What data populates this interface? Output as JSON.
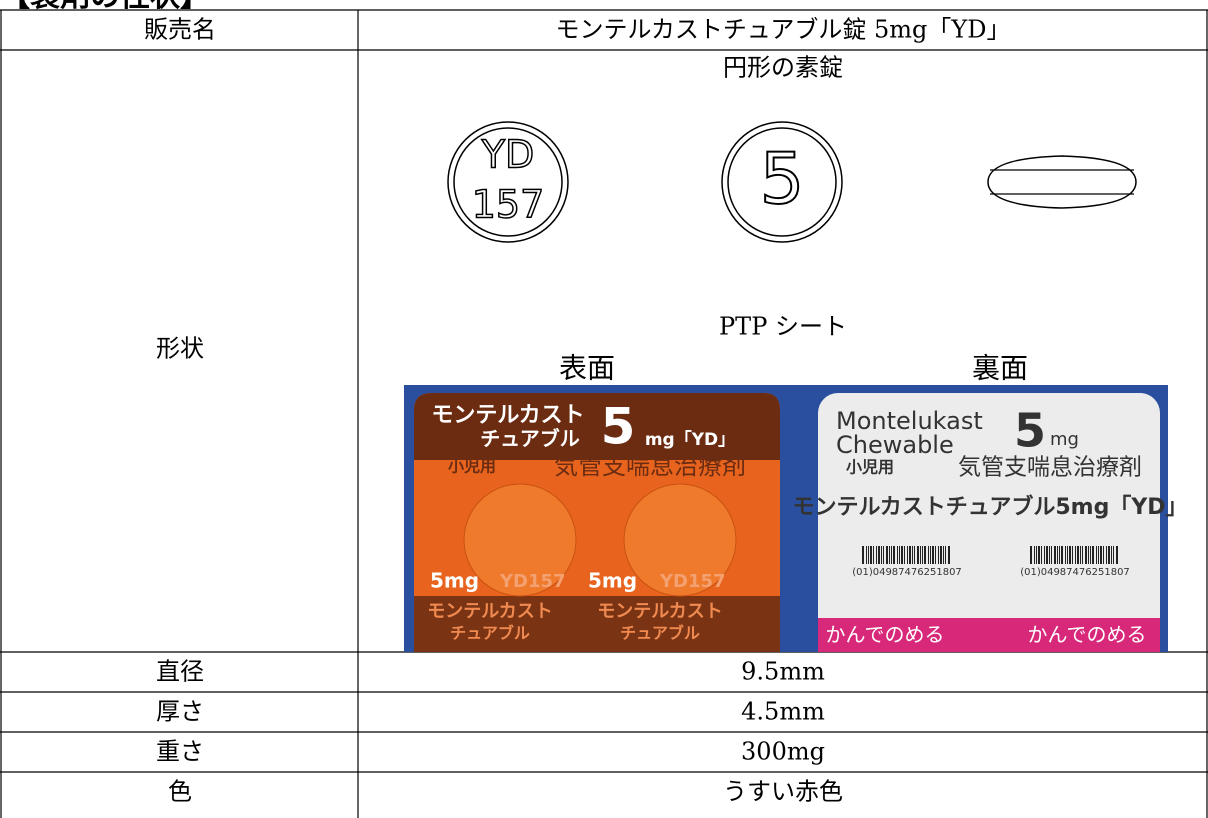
{
  "header": {
    "title": "【製剤の性状】"
  },
  "table": {
    "rows": [
      [
        "販売名",
        "モンテルカストチュアブル錠 5mg「YD」"
      ],
      [
        "形状",
        ""
      ],
      [
        "直径",
        "9.5mm"
      ],
      [
        "厚さ",
        "4.5mm"
      ],
      [
        "重さ",
        "300mg"
      ],
      [
        "色",
        "うすい赤色"
      ]
    ]
  },
  "shape": {
    "caption": "円形の素錠",
    "tablet_front": [
      "YD",
      "157"
    ],
    "tablet_back": "5",
    "ptp_caption": "PTP シート",
    "front_label": "表面",
    "back_label": "裏面",
    "ptp_front": {
      "name1": "モンテルカスト",
      "name2": "チュアブル",
      "strength": "5",
      "unit": "mg「YD」",
      "badge": "小児用",
      "indication": "気管支喘息治療剤",
      "pocket_strength": "5mg",
      "pocket_code": "YD157"
    },
    "ptp_back": {
      "name1": "Montelukast",
      "name2": "Chewable",
      "strength": "5",
      "unit": "mg",
      "badge": "小児用",
      "indication": "気管支喘息治療剤",
      "product": "モンテルカストチュアブル5mg「YD」",
      "barcode": "(01)04987476251807",
      "slogan": "かんでのめる"
    }
  }
}
